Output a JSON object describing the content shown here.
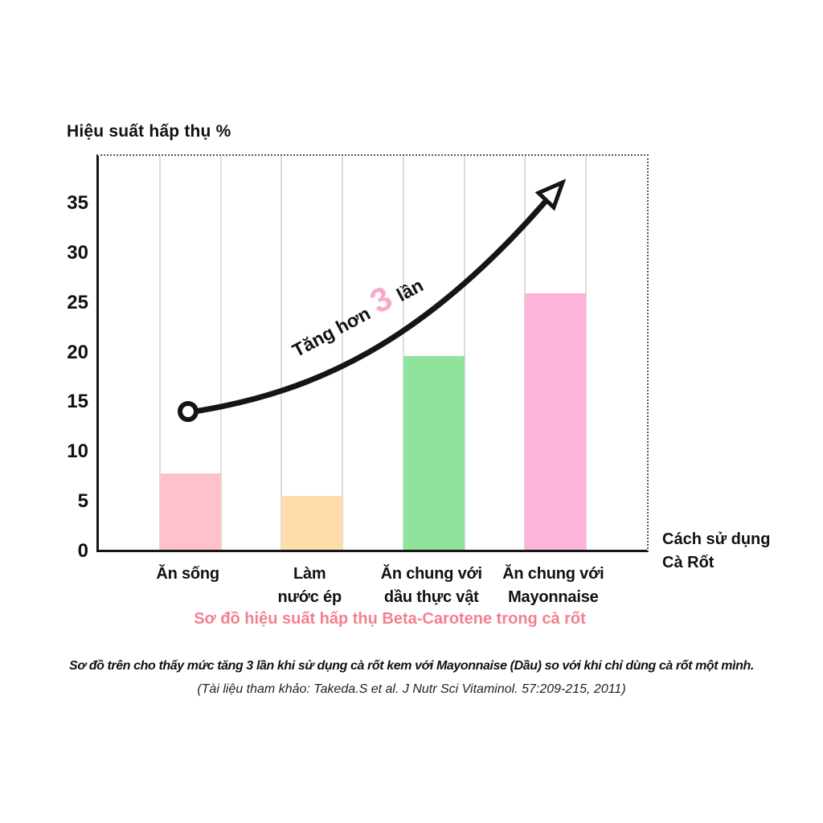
{
  "page": {
    "y_axis_title": "Hiệu suất hấp thụ %",
    "x_axis_title_lines": [
      "Cách sử dụng",
      "Cà Rốt"
    ],
    "caption": "Sơ đồ hiệu suất hấp thụ Beta-Carotene trong cà rốt",
    "footnote": "Sơ đồ trên cho thấy mức tăng 3 lần khi sử dụng cà rốt kem với Mayonnaise (Dầu) so với khi chỉ dùng cà rốt một mình.",
    "reference": "(Tài liệu tham khảo: Takeda.S et al. J Nutr Sci Vitaminol. 57:209-215, 2011)"
  },
  "annotation": {
    "prefix": "Tăng hơn",
    "highlight": "3",
    "suffix": "lần"
  },
  "colors": {
    "caption_pink": "#f4808f",
    "annotation_pink": "#f7a9ca",
    "gridline_gray": "#dcdcdc",
    "axis_black": "#151515"
  },
  "chart_data": {
    "type": "bar",
    "title": "Sơ đồ hiệu suất hấp thụ Beta-Carotene trong cà rốt",
    "xlabel": "Cách sử dụng Cà Rốt",
    "ylabel": "Hiệu suất hấp thụ %",
    "categories": [
      "Ăn sống",
      "Làm nước ép",
      "Ăn chung với dầu thực vật",
      "Ăn chung với Mayonnaise"
    ],
    "category_lines": [
      [
        "Ăn sống"
      ],
      [
        "Làm",
        "nước ép"
      ],
      [
        "Ăn chung với",
        "dầu thực vật"
      ],
      [
        "Ăn chung với",
        "Mayonnaise"
      ]
    ],
    "values": [
      7.7,
      5.4,
      19.5,
      25.8
    ],
    "bar_colors": [
      "#ffc2cd",
      "#fedcab",
      "#90e39a",
      "#fdb3da"
    ],
    "yticks": [
      0,
      5,
      10,
      15,
      20,
      25,
      30,
      35
    ],
    "ylim": [
      0,
      39.6
    ],
    "grid": "vertical-light-columns",
    "legend": "none",
    "annotation": "Tăng hơn 3 lần",
    "trend_arrow": {
      "shape": "curved-up-right",
      "start_marker": "open-circle",
      "start_value": 14,
      "end_marker": "open-triangle-arrowhead"
    }
  }
}
